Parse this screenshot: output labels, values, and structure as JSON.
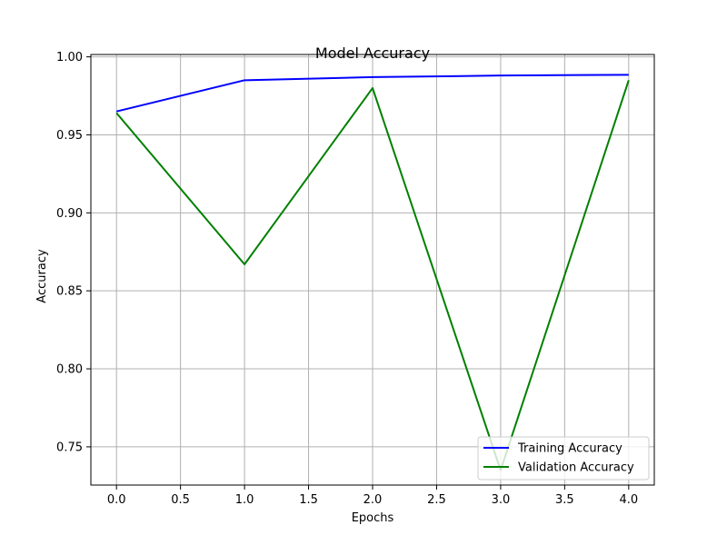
{
  "chart_data": {
    "type": "line",
    "title": "Model Accuracy",
    "xlabel": "Epochs",
    "ylabel": "Accuracy",
    "x": [
      0,
      1,
      2,
      3,
      4
    ],
    "series": [
      {
        "name": "Training Accuracy",
        "color": "#0000ff",
        "values": [
          0.965,
          0.985,
          0.987,
          0.988,
          0.9885
        ]
      },
      {
        "name": "Validation Accuracy",
        "color": "#008000",
        "values": [
          0.964,
          0.867,
          0.98,
          0.735,
          0.985
        ]
      }
    ],
    "xlim": [
      -0.2,
      4.2
    ],
    "ylim": [
      0.7255,
      1.0015
    ],
    "xticks": [
      0.0,
      0.5,
      1.0,
      1.5,
      2.0,
      2.5,
      3.0,
      3.5,
      4.0
    ],
    "xtick_labels": [
      "0.0",
      "0.5",
      "1.0",
      "1.5",
      "2.0",
      "2.5",
      "3.0",
      "3.5",
      "4.0"
    ],
    "yticks": [
      0.75,
      0.8,
      0.85,
      0.9,
      0.95,
      1.0
    ],
    "ytick_labels": [
      "0.75",
      "0.80",
      "0.85",
      "0.90",
      "0.95",
      "1.00"
    ],
    "grid": true,
    "legend_position": "lower-right"
  }
}
